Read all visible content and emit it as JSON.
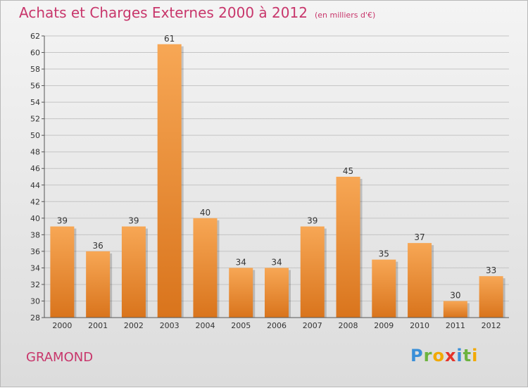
{
  "title": "Achats et Charges Externes 2000 à 2012",
  "subtitle": "(en milliers d'€)",
  "commune": "GRAMOND",
  "logo": {
    "letters": [
      {
        "ch": "P",
        "color": "#3a8fd8"
      },
      {
        "ch": "r",
        "color": "#6cb33f"
      },
      {
        "ch": "o",
        "color": "#f2a900"
      },
      {
        "ch": "x",
        "color": "#e5332a"
      },
      {
        "ch": "i",
        "color": "#3a8fd8"
      },
      {
        "ch": "t",
        "color": "#6cb33f"
      },
      {
        "ch": "i",
        "color": "#f2a900"
      }
    ]
  },
  "colors": {
    "bar_light": "#f7a755",
    "bar_dark": "#d9741c",
    "accent": "#c8366b"
  },
  "chart_data": {
    "type": "bar",
    "categories": [
      "2000",
      "2001",
      "2002",
      "2003",
      "2004",
      "2005",
      "2006",
      "2007",
      "2008",
      "2009",
      "2010",
      "2011",
      "2012"
    ],
    "values": [
      39,
      36,
      39,
      61,
      40,
      34,
      34,
      39,
      45,
      35,
      37,
      30,
      33
    ],
    "ylim": [
      28,
      62
    ],
    "yticks": [
      28,
      30,
      32,
      34,
      36,
      38,
      40,
      42,
      44,
      46,
      48,
      50,
      52,
      54,
      56,
      58,
      60,
      62
    ],
    "grid": true,
    "data_labels": true
  }
}
